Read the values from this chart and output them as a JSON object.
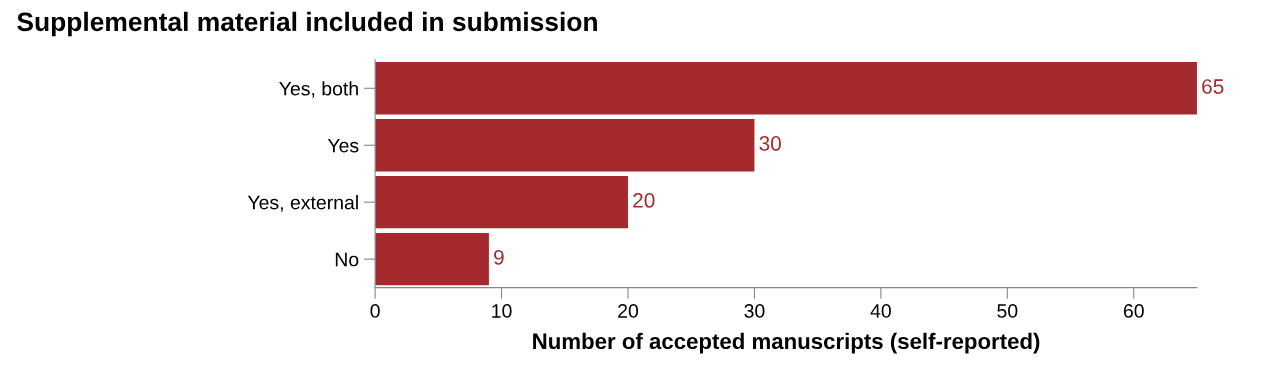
{
  "chart_data": {
    "type": "bar",
    "orientation": "horizontal",
    "title": "Supplemental material included in submission",
    "xlabel": "Number of accepted manuscripts (self-reported)",
    "categories": [
      "Yes, both",
      "Yes",
      "Yes, external",
      "No"
    ],
    "values": [
      65,
      30,
      20,
      9
    ],
    "color": "#a52a2d",
    "xlim": [
      0,
      65
    ],
    "xticks": [
      0,
      10,
      20,
      30,
      40,
      50,
      60
    ],
    "grid": false,
    "data_labels": true
  }
}
